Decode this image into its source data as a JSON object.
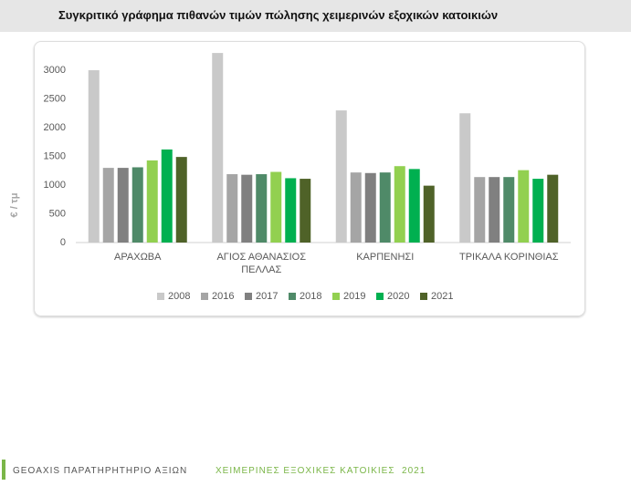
{
  "title": "Συγκριτικό γράφημα πιθανών τιμών πώλησης χειμερινών εξοχικών κατοικιών",
  "chart_data": {
    "type": "bar",
    "ylabel": "€ / τμ",
    "categories": [
      "ΑΡΑΧΩΒΑ",
      "ΑΓΙΟΣ ΑΘΑΝΑΣΙΟΣ ΠΕΛΛΑΣ",
      "ΚΑΡΠΕΝΗΣΙ",
      "ΤΡΙΚΑΛΑ ΚΟΡΙΝΘΙΑΣ"
    ],
    "series": [
      {
        "name": "2008",
        "color": "#c9c9c9",
        "values": [
          3000,
          3300,
          2300,
          2250
        ]
      },
      {
        "name": "2016",
        "color": "#a5a5a5",
        "values": [
          1300,
          1190,
          1220,
          1140
        ]
      },
      {
        "name": "2017",
        "color": "#808080",
        "values": [
          1300,
          1180,
          1210,
          1140
        ]
      },
      {
        "name": "2018",
        "color": "#4f8a68",
        "values": [
          1310,
          1190,
          1220,
          1140
        ]
      },
      {
        "name": "2019",
        "color": "#92d050",
        "values": [
          1430,
          1230,
          1330,
          1260
        ]
      },
      {
        "name": "2020",
        "color": "#00b050",
        "values": [
          1620,
          1120,
          1280,
          1110
        ]
      },
      {
        "name": "2021",
        "color": "#4f6228",
        "values": [
          1490,
          1110,
          990,
          1180
        ]
      }
    ],
    "ylim": [
      0,
      3500
    ],
    "yticks": [
      0,
      500,
      1000,
      1500,
      2000,
      2500,
      3000
    ],
    "grid": false,
    "legend": "bottom"
  },
  "footer": {
    "left": "GEOAXIS ΠΑΡΑΤΗΡΗΤΗΡΙΟ ΑΞΙΩΝ",
    "right": "ΧΕΙΜΕΡΙΝΕΣ ΕΞΟΧΙΚΕΣ ΚΑΤΟΙΚΙΕΣ  2021"
  }
}
